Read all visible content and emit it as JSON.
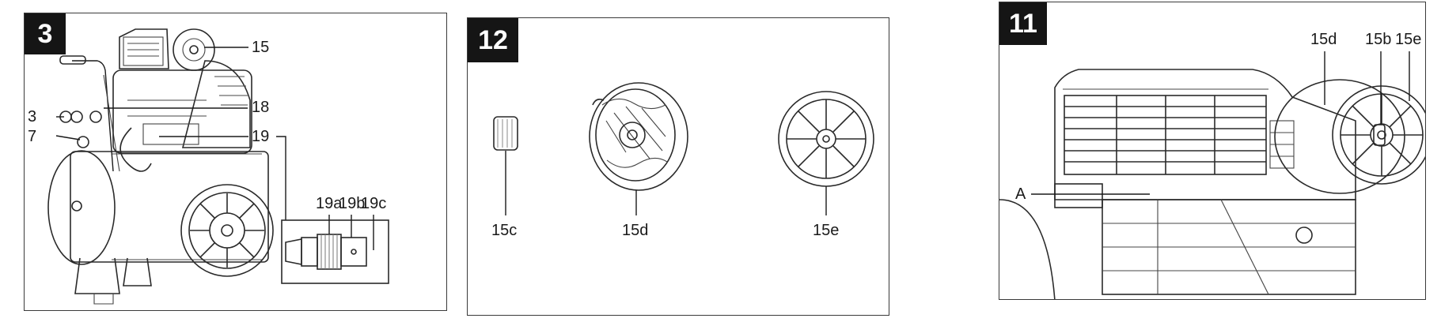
{
  "figures": [
    {
      "number": "3",
      "callouts": [
        "15",
        "18",
        "3",
        "7",
        "19",
        "19a",
        "19b",
        "19c"
      ]
    },
    {
      "number": "12",
      "callouts": [
        "15c",
        "15d",
        "15e"
      ]
    },
    {
      "number": "11",
      "callouts": [
        "15d",
        "15b",
        "15e",
        "A"
      ]
    }
  ]
}
